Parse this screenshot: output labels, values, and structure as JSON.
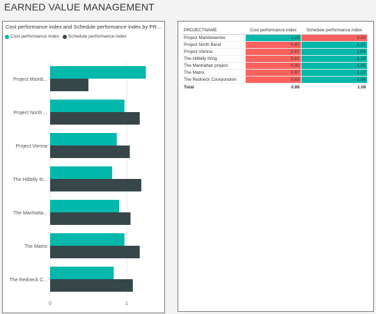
{
  "page": {
    "title": "EARNED VALUE MANAGEMENT"
  },
  "colors": {
    "cpi": "#01b8aa",
    "spi": "#374649",
    "good": "#01b8aa",
    "bad": "#fd625e"
  },
  "chart_data": {
    "type": "bar",
    "orientation": "horizontal",
    "title": "Cost performance index and Schedule performance index by PROJ...",
    "categories": [
      "Project Mamb...",
      "Project North ...",
      "Project Vienna",
      "The Hillbilly th...",
      "The Manhatta...",
      "The Matrix",
      "The Redneck C..."
    ],
    "series": [
      {
        "name": "Cost performance index",
        "color": "#01b8aa",
        "values": [
          1.25,
          0.97,
          0.87,
          0.81,
          0.9,
          0.97,
          0.83
        ]
      },
      {
        "name": "Schedule performance index",
        "color": "#374649",
        "values": [
          0.5,
          1.17,
          1.04,
          1.19,
          1.05,
          1.17,
          1.08
        ]
      }
    ],
    "xticks": [
      "0",
      "1"
    ],
    "xlim": [
      0,
      1.4
    ],
    "grid": true,
    "legend": "top-left"
  },
  "table": {
    "columns": [
      "PROJECTNAME",
      "Cost performance index",
      "Schedule performance index"
    ],
    "rows": [
      {
        "name": "Project Mambolambo",
        "cpi": "1.25",
        "spi": "0.50",
        "cpi_status": "good",
        "spi_status": "bad"
      },
      {
        "name": "Project North Bend",
        "cpi": "0.97",
        "spi": "1.17",
        "cpi_status": "bad",
        "spi_status": "good"
      },
      {
        "name": "Project Vienna",
        "cpi": "0.87",
        "spi": "1.04",
        "cpi_status": "bad",
        "spi_status": "good"
      },
      {
        "name": "The Hillbilly thing",
        "cpi": "0.81",
        "spi": "1.19",
        "cpi_status": "bad",
        "spi_status": "good"
      },
      {
        "name": "The Manhattan project",
        "cpi": "0.90",
        "spi": "1.05",
        "cpi_status": "bad",
        "spi_status": "good"
      },
      {
        "name": "The Matrix",
        "cpi": "0.97",
        "spi": "1.17",
        "cpi_status": "bad",
        "spi_status": "good"
      },
      {
        "name": "The Redneck Coorporation",
        "cpi": "0.83",
        "spi": "1.08",
        "cpi_status": "bad",
        "spi_status": "good"
      }
    ],
    "total": {
      "label": "Total",
      "cpi": "0.86",
      "spi": "1.08"
    }
  }
}
